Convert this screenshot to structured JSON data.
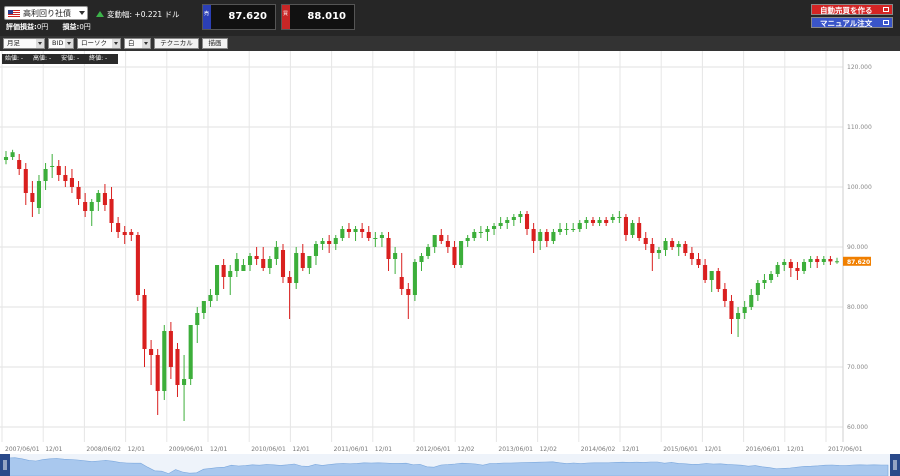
{
  "header": {
    "pair_label": "高利回り社債",
    "change_label": "変動幅:",
    "change_value": "+0.221 ドル",
    "eval_profit_label": "評価損益:",
    "eval_profit_value": "0円",
    "profit_label": "損益:",
    "profit_value": "0円",
    "bid_tag": "売",
    "bid_price": "87.620",
    "ask_tag": "買",
    "ask_price": "88.010",
    "auto_button": "自動売買を作る",
    "manual_button": "マニュアル注文"
  },
  "toolbar": {
    "period": "月足",
    "price_type": "BID",
    "chart_type": "ローソク",
    "color": "白",
    "technical": "テクニカル",
    "drawing": "描画"
  },
  "ohlc_bar": {
    "open": "始値: -",
    "high": "高値: -",
    "low": "安値: -",
    "close": "終値: -"
  },
  "colors": {
    "up": "#3cae3a",
    "down": "#d9201f",
    "current_price_tag": "#f07f00",
    "navigator_fill": "#a9c8ee"
  },
  "chart_data": {
    "type": "candlestick",
    "ylim": [
      60,
      120
    ],
    "y_ticks": [
      "60.000",
      "70.000",
      "80.000",
      "90.000",
      "100.000",
      "110.000",
      "120.000"
    ],
    "x_ticks": [
      "2007/06/01",
      "12/01",
      "2008/06/02",
      "12/01",
      "2009/06/01",
      "12/01",
      "2010/06/01",
      "12/01",
      "2011/06/01",
      "12/01",
      "2012/06/01",
      "12/02",
      "2013/06/01",
      "12/02",
      "2014/06/02",
      "12/01",
      "2015/06/01",
      "12/01",
      "2016/06/01",
      "12/01",
      "2017/06/01"
    ],
    "current_price": "87.620",
    "candles": [
      [
        104.5,
        106,
        103.8,
        105
      ],
      [
        105,
        106.2,
        104.5,
        105.8
      ],
      [
        104.5,
        105.5,
        102,
        103
      ],
      [
        103,
        104,
        97,
        99
      ],
      [
        99,
        101,
        95,
        97.5
      ],
      [
        96.5,
        102,
        95.5,
        101
      ],
      [
        101,
        104,
        99.5,
        103
      ],
      [
        103.5,
        105.5,
        101.5,
        103.5
      ],
      [
        103.5,
        104.5,
        101,
        102
      ],
      [
        102,
        103.5,
        100,
        101
      ],
      [
        101.5,
        103,
        99,
        100
      ],
      [
        100,
        101,
        97,
        98
      ],
      [
        97.5,
        99,
        95,
        96
      ],
      [
        96,
        98,
        93.5,
        97.5
      ],
      [
        97.5,
        99.5,
        96,
        99
      ],
      [
        99,
        100.5,
        96,
        97
      ],
      [
        98,
        100,
        92.5,
        94
      ],
      [
        94,
        95,
        91.5,
        92.5
      ],
      [
        92.5,
        93.5,
        90.5,
        92
      ],
      [
        92.5,
        93,
        91,
        92
      ],
      [
        92,
        92.5,
        81,
        82
      ],
      [
        82,
        83,
        70,
        73
      ],
      [
        73,
        74.5,
        67,
        72
      ],
      [
        72,
        73,
        62,
        66
      ],
      [
        66,
        77,
        64.5,
        76
      ],
      [
        76,
        77.5,
        68,
        70
      ],
      [
        73,
        74,
        65,
        67
      ],
      [
        67,
        72,
        61,
        68
      ],
      [
        68,
        77,
        67,
        77
      ],
      [
        77,
        80,
        74,
        79
      ],
      [
        79,
        81,
        78,
        81
      ],
      [
        81,
        83,
        80,
        82
      ],
      [
        82,
        87,
        81,
        87
      ],
      [
        87,
        88,
        83,
        85
      ],
      [
        85,
        87,
        82,
        86
      ],
      [
        86,
        89,
        85,
        88
      ],
      [
        86,
        88,
        86,
        87
      ],
      [
        87,
        89,
        86,
        88.5
      ],
      [
        88.5,
        90,
        87,
        88
      ],
      [
        88,
        90,
        86,
        86.5
      ],
      [
        86.5,
        88.5,
        85.5,
        88
      ],
      [
        88,
        91,
        87,
        90
      ],
      [
        89.5,
        90.5,
        84,
        85
      ],
      [
        85,
        86,
        78,
        84
      ],
      [
        84,
        90,
        83,
        89
      ],
      [
        89,
        90.5,
        86,
        86.5
      ],
      [
        86.5,
        88.5,
        85.5,
        88.5
      ],
      [
        88.5,
        91,
        87,
        90.5
      ],
      [
        90.5,
        91.5,
        89.5,
        91
      ],
      [
        91,
        92,
        89,
        90.5
      ],
      [
        90.5,
        92,
        89.5,
        91.5
      ],
      [
        91.5,
        93.5,
        91,
        93
      ],
      [
        93,
        94,
        91.5,
        92.5
      ],
      [
        92.5,
        93.5,
        91,
        93
      ],
      [
        93,
        94,
        91.5,
        92.5
      ],
      [
        92.5,
        93.5,
        91,
        91.5
      ],
      [
        91.5,
        92.5,
        90,
        91.5
      ],
      [
        91.5,
        92.5,
        90,
        92
      ],
      [
        91.5,
        92.5,
        86,
        88
      ],
      [
        88,
        90,
        85.5,
        89
      ],
      [
        85,
        89,
        82,
        83
      ],
      [
        83,
        84,
        78,
        82
      ],
      [
        82,
        88,
        81,
        87.5
      ],
      [
        87.5,
        89,
        86,
        88.5
      ],
      [
        88.5,
        90.5,
        88,
        90
      ],
      [
        90,
        92,
        89,
        92
      ],
      [
        92,
        93,
        90.5,
        91
      ],
      [
        91,
        92,
        89,
        90
      ],
      [
        90,
        91,
        86.5,
        87
      ],
      [
        87,
        91,
        86.5,
        91
      ],
      [
        91,
        92,
        90,
        91.5
      ],
      [
        91.5,
        93,
        91,
        92.5
      ],
      [
        92.5,
        93.5,
        91.5,
        92.5
      ],
      [
        92.5,
        93.5,
        91,
        93
      ],
      [
        93,
        94,
        92,
        93.5
      ],
      [
        93.5,
        95,
        93,
        94
      ],
      [
        94,
        95,
        93,
        94.5
      ],
      [
        94.5,
        95.5,
        93.5,
        95
      ],
      [
        95,
        96,
        94,
        95.5
      ],
      [
        95.5,
        96,
        92,
        93
      ],
      [
        93,
        94,
        89,
        91
      ],
      [
        91,
        93,
        89.5,
        92.5
      ],
      [
        92.5,
        93,
        90,
        91
      ],
      [
        91,
        93,
        90.5,
        92.5
      ],
      [
        92.5,
        94,
        92,
        93
      ],
      [
        93,
        94,
        92,
        93
      ],
      [
        93,
        94,
        92.5,
        93
      ],
      [
        93,
        94.5,
        92.5,
        94
      ],
      [
        94,
        95,
        93,
        94.5
      ],
      [
        94.5,
        95,
        93.5,
        94
      ],
      [
        94,
        95,
        93.5,
        94.5
      ],
      [
        94.5,
        95,
        93.5,
        94
      ],
      [
        94.5,
        95.5,
        94,
        95
      ],
      [
        95,
        96,
        94,
        95
      ],
      [
        95,
        95.5,
        91,
        92
      ],
      [
        92,
        94.5,
        91.5,
        94
      ],
      [
        94,
        95,
        91,
        91.5
      ],
      [
        91.5,
        92.5,
        89.5,
        90.5
      ],
      [
        90.5,
        91.5,
        86,
        89
      ],
      [
        89,
        90,
        88,
        89.5
      ],
      [
        89.5,
        91.5,
        88.5,
        91
      ],
      [
        91,
        91.5,
        89.5,
        90
      ],
      [
        90,
        91,
        88.5,
        90.5
      ],
      [
        90.5,
        91,
        88.5,
        89
      ],
      [
        89,
        90,
        87,
        88
      ],
      [
        88,
        89,
        86.5,
        87
      ],
      [
        87,
        88,
        84,
        84.5
      ],
      [
        84.5,
        86,
        82.5,
        86
      ],
      [
        86,
        86.5,
        82.5,
        83
      ],
      [
        83,
        84,
        80,
        81
      ],
      [
        81,
        82,
        75.5,
        78
      ],
      [
        78,
        80,
        75,
        79
      ],
      [
        79,
        81,
        78,
        80
      ],
      [
        80,
        83,
        79.5,
        82
      ],
      [
        82,
        84.5,
        81,
        84
      ],
      [
        84,
        85.5,
        83,
        84.5
      ],
      [
        84.5,
        86,
        84,
        85.5
      ],
      [
        85.5,
        87.5,
        85,
        87
      ],
      [
        87,
        88,
        86,
        87.5
      ],
      [
        87.5,
        88,
        85,
        86.5
      ],
      [
        86.5,
        87.5,
        84.5,
        86
      ],
      [
        86,
        88,
        85.5,
        87.5
      ],
      [
        87.5,
        88.5,
        86.5,
        88
      ],
      [
        88,
        88.5,
        86.5,
        87.5
      ],
      [
        87.5,
        88.5,
        87,
        88
      ],
      [
        88,
        88.5,
        87,
        87.6
      ],
      [
        87.6,
        88.2,
        87.2,
        87.62
      ]
    ]
  }
}
